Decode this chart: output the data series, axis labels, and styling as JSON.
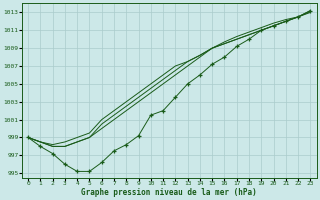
{
  "title": "Graphe pression niveau de la mer (hPa)",
  "bg_color": "#cce8e8",
  "grid_color": "#aacccc",
  "line_color": "#1a5c1a",
  "xlim": [
    -0.5,
    23.5
  ],
  "ylim": [
    994.5,
    1014.0
  ],
  "yticks": [
    995,
    997,
    999,
    1001,
    1003,
    1005,
    1007,
    1009,
    1011,
    1013
  ],
  "xticks": [
    0,
    1,
    2,
    3,
    4,
    5,
    6,
    7,
    8,
    9,
    10,
    11,
    12,
    13,
    14,
    15,
    16,
    17,
    18,
    19,
    20,
    21,
    22,
    23
  ],
  "line_main": [
    999,
    998,
    997.2,
    996,
    995.2,
    995.2,
    996.2,
    997.5,
    998.2,
    999.2,
    1001.5,
    1002,
    1003.5,
    1005,
    1006,
    1007.2,
    1008,
    1009.2,
    1010,
    1011,
    1011.5,
    1012,
    1012.5,
    1013.2
  ],
  "line_upper1": [
    999,
    998.5,
    998,
    998,
    998.5,
    999,
    1000,
    1001,
    1002,
    1003,
    1004,
    1005,
    1006,
    1007,
    1008,
    1009,
    1009.5,
    1010,
    1010.5,
    1011,
    1011.5,
    1012,
    1012.5,
    1013
  ],
  "line_upper2": [
    999,
    998.5,
    998,
    998,
    998.5,
    999,
    1000.5,
    1001.5,
    1002.5,
    1003.5,
    1004.5,
    1005.5,
    1006.5,
    1007.5,
    1008.2,
    1009,
    1009.7,
    1010.3,
    1010.8,
    1011.3,
    1011.8,
    1012.2,
    1012.5,
    1013.1
  ],
  "line_upper3": [
    999,
    998.5,
    998.2,
    998.5,
    999,
    999.5,
    1001,
    1002,
    1003,
    1004,
    1005,
    1006,
    1007,
    1007.5,
    1008.2,
    1009,
    1009.5,
    1010,
    1010.5,
    1011,
    1011.5,
    1012,
    1012.5,
    1013.2
  ]
}
